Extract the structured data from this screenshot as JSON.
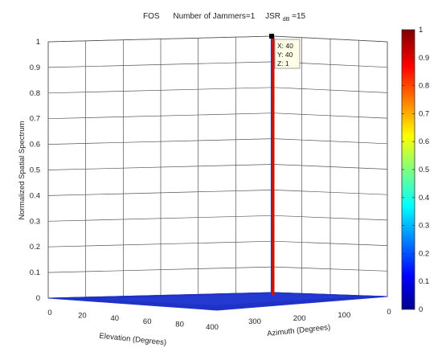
{
  "chart_data": {
    "type": "surface",
    "title_method": "FOS",
    "title_jammers": "Number of Jammers=1",
    "title_jsr_main": "JSR",
    "title_jsr_sub": "dB",
    "title_jsr_value": " =15",
    "zlabel": "Normalized Spatial Spectrum",
    "xlabel": "Elevation (Degrees)",
    "ylabel": "Azimuth (Degrees)",
    "zlim": [
      0,
      1
    ],
    "z_ticks": [
      "0",
      "0.1",
      "0.2",
      "0.3",
      "0.4",
      "0.5",
      "0.6",
      "0.7",
      "0.8",
      "0.9",
      "1"
    ],
    "elevation_ticks": [
      "0",
      "20",
      "40",
      "60",
      "80",
      "400"
    ],
    "azimuth_ticks": [
      "300",
      "200",
      "100",
      "0"
    ],
    "colorbar": {
      "range": [
        0,
        1
      ],
      "ticks": [
        "0",
        "0.1",
        "0.2",
        "0.3",
        "0.4",
        "0.5",
        "0.6",
        "0.7",
        "0.8",
        "0.9",
        "1"
      ]
    },
    "peak": {
      "x": 40,
      "y": 40,
      "z": 1
    },
    "datatip": {
      "x_text": "X: 40",
      "y_text": "Y: 40",
      "z_text": "Z: 1"
    },
    "grid": true,
    "floor_color": "#1e32c8",
    "peak_color": "#cc1111"
  }
}
